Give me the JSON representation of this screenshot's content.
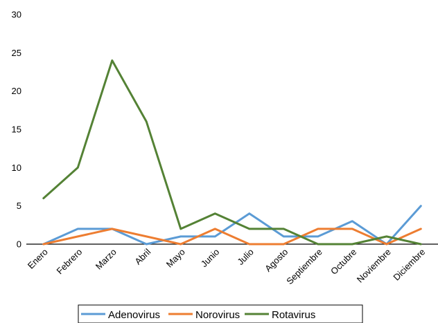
{
  "chart_data": {
    "type": "line",
    "categories": [
      "Enero",
      "Febrero",
      "Marzo",
      "Abril",
      "Mayo",
      "Junio",
      "Julio",
      "Agosto",
      "Septiembre",
      "Octubre",
      "Noviembre",
      "Diciembre"
    ],
    "series": [
      {
        "name": "Adenovirus",
        "color": "#5b9bd5",
        "values": [
          0,
          2,
          2,
          0,
          1,
          1,
          4,
          1,
          1,
          3,
          0,
          5
        ]
      },
      {
        "name": "Norovirus",
        "color": "#ed7d31",
        "values": [
          0,
          1,
          2,
          1,
          0,
          2,
          0,
          0,
          2,
          2,
          0,
          2
        ]
      },
      {
        "name": "Rotavirus",
        "color": "#548235",
        "values": [
          6,
          10,
          24,
          16,
          2,
          4,
          2,
          2,
          0,
          0,
          1,
          0
        ]
      }
    ],
    "ylim": [
      0,
      30
    ],
    "yticks": [
      0,
      5,
      10,
      15,
      20,
      25,
      30
    ],
    "ytick_labels": [
      "0",
      "5",
      "10",
      "15",
      "20",
      "25",
      "30"
    ],
    "grid": false,
    "legend": "bottom"
  }
}
